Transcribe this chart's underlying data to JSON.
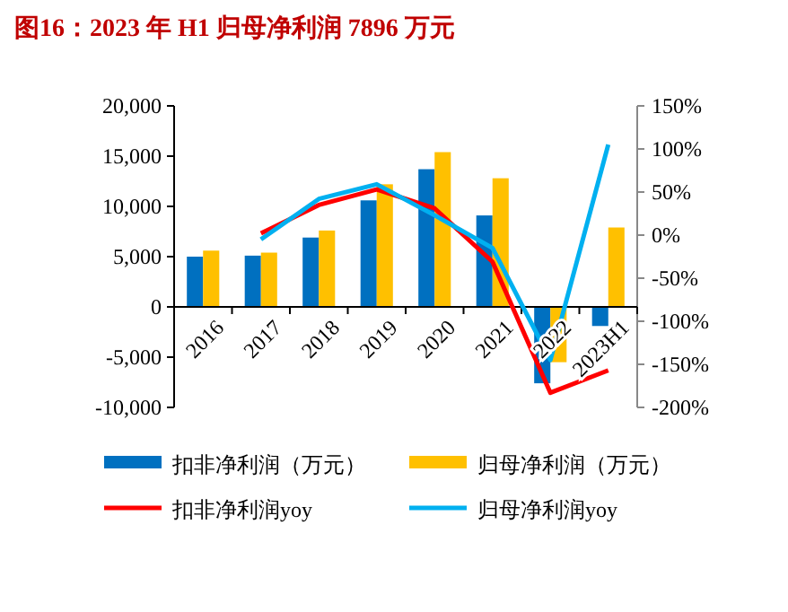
{
  "chart_data": {
    "type": "bar",
    "title": "图16：2023 年 H1 归母净利润 7896 万元",
    "categories": [
      "2016",
      "2017",
      "2018",
      "2019",
      "2020",
      "2021",
      "2022",
      "2023H1"
    ],
    "series": [
      {
        "name": "扣非净利润（万元）",
        "color": "#0070c0",
        "values": [
          5000,
          5100,
          6900,
          10600,
          13700,
          9100,
          -7600,
          -1900
        ]
      },
      {
        "name": "归母净利润（万元）",
        "color": "#ffc000",
        "values": [
          5600,
          5400,
          7600,
          12200,
          15400,
          12800,
          -5500,
          7900
        ]
      },
      {
        "name": "扣非净利润yoy",
        "type": "line",
        "axis": "y2",
        "color": "#ff0000",
        "values": [
          null,
          2,
          35,
          53,
          31,
          -31,
          -183,
          -157
        ]
      },
      {
        "name": "归母净利润yoy",
        "type": "line",
        "axis": "y2",
        "color": "#00b0f0",
        "values": [
          null,
          -5,
          42,
          59,
          23,
          -15,
          -145,
          105
        ]
      }
    ],
    "ylim": [
      -10000,
      20000
    ],
    "yticks": [
      {
        "value": -10000,
        "label": "-10,000"
      },
      {
        "value": -5000,
        "label": "-5,000"
      },
      0,
      {
        "value": 5000,
        "label": "5,000"
      },
      {
        "value": 10000,
        "label": "10,000"
      },
      {
        "value": 15000,
        "label": "15,000"
      },
      {
        "value": 20000,
        "label": "20,000"
      }
    ],
    "y2lim": [
      -200,
      150
    ],
    "y2ticks": [
      {
        "value": -200,
        "label": "-200%"
      },
      {
        "value": -150,
        "label": "-150%"
      },
      {
        "value": -100,
        "label": "-100%"
      },
      {
        "value": -50,
        "label": "-50%"
      },
      {
        "value": 0,
        "label": "0%"
      },
      {
        "value": 50,
        "label": "50%"
      },
      {
        "value": 100,
        "label": "100%"
      },
      {
        "value": 150,
        "label": "150%"
      }
    ],
    "legend": "bottom"
  }
}
